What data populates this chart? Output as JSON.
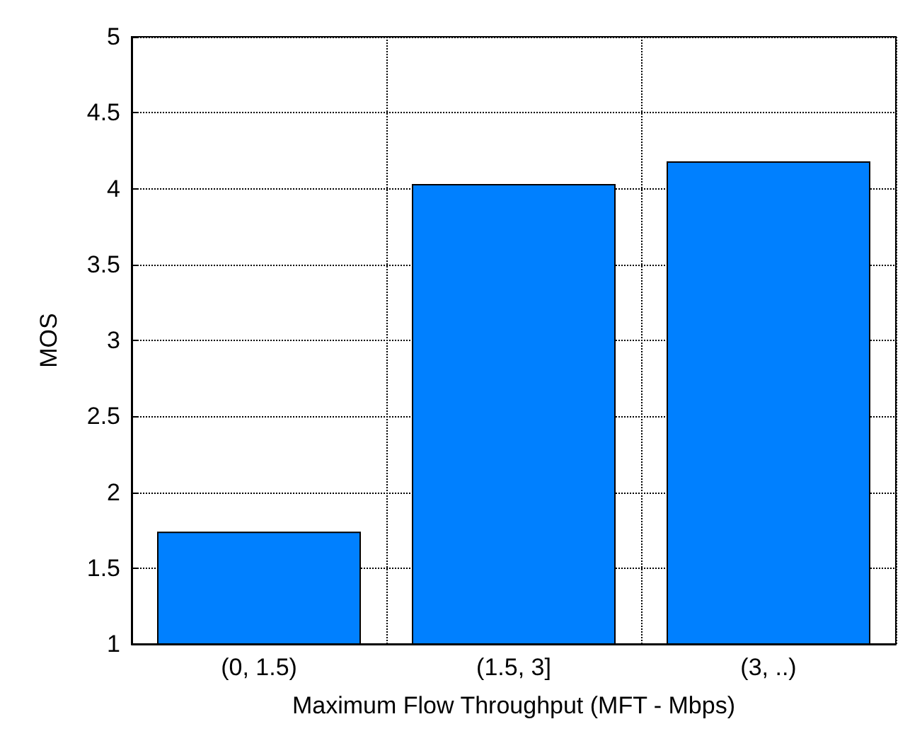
{
  "chart_data": {
    "type": "bar",
    "xlabel": "Maximum Flow Throughput (MFT - Mbps)",
    "ylabel": "MOS",
    "categories": [
      "(0, 1.5)",
      "(1.5, 3]",
      "(3, ..)"
    ],
    "values": [
      1.74,
      4.03,
      4.18
    ],
    "color": "#0080ff",
    "ylim": [
      1,
      5
    ],
    "yticks": [
      1,
      1.5,
      2,
      2.5,
      3,
      3.5,
      4,
      4.5,
      5
    ],
    "grid": true
  }
}
